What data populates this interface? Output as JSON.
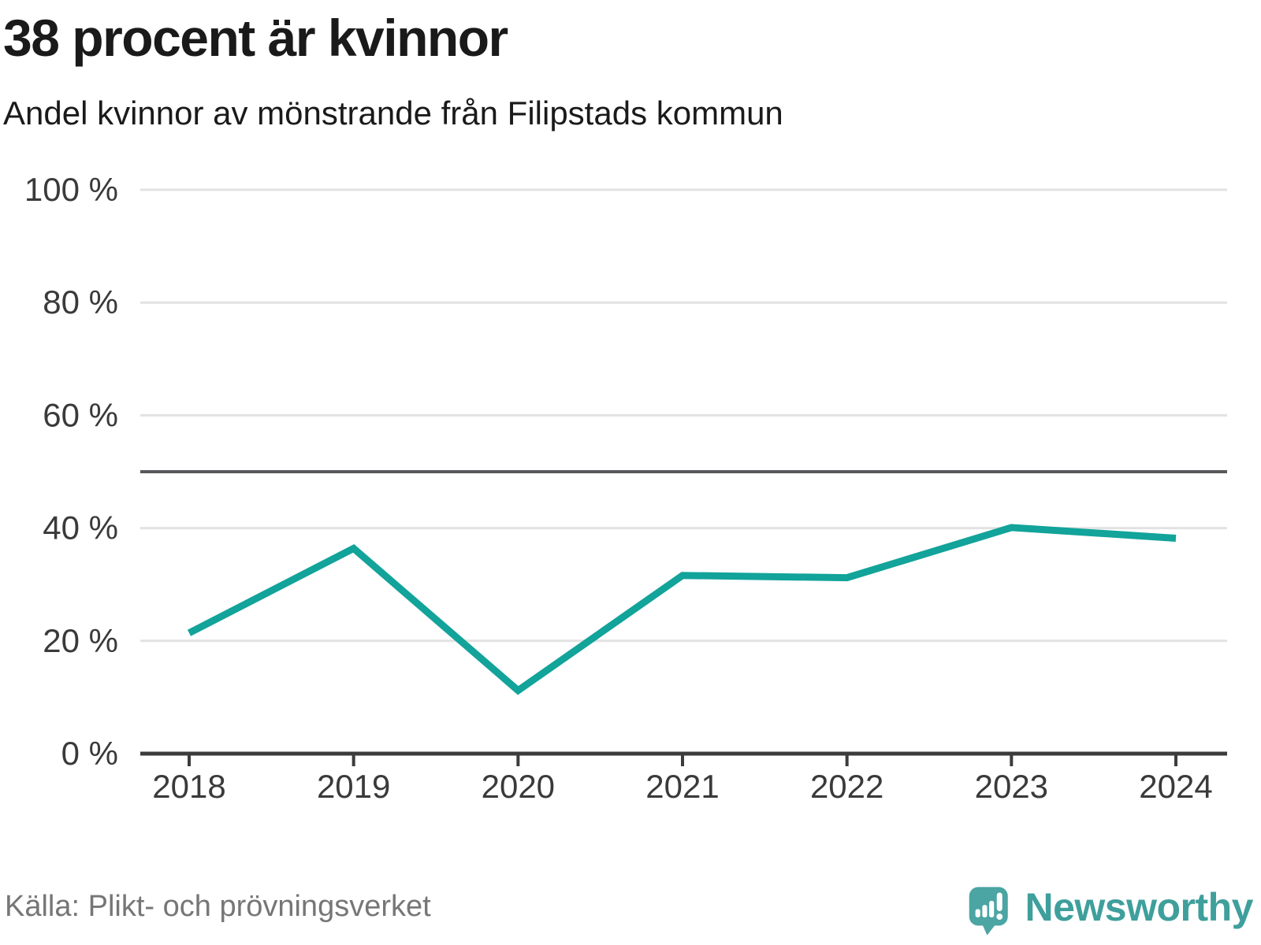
{
  "header": {
    "title": "38 procent är kvinnor",
    "subtitle": "Andel kvinnor av mönstrande från Filipstads kommun"
  },
  "footer": {
    "source": "Källa: Plikt- och prövningsverket",
    "brand": "Newsworthy"
  },
  "colors": {
    "line": "#12a39a",
    "grid": "#e2e2e2",
    "axis": "#3c3c3c",
    "reference_line": "#58585c",
    "tick_text": "#3a3a3a",
    "title_text": "#1a1a1a",
    "source_text": "#767676",
    "brand_text": "#3f9f9c",
    "logo_bubble": "#4ba5a2"
  },
  "chart_data": {
    "type": "line",
    "title": "38 procent är kvinnor",
    "subtitle": "Andel kvinnor av mönstrande från Filipstads kommun",
    "x": [
      2018,
      2019,
      2020,
      2021,
      2022,
      2023,
      2024
    ],
    "series": [
      {
        "name": "Andel kvinnor av mönstrande",
        "values": [
          21.4,
          36.4,
          11.2,
          31.6,
          31.2,
          40.1,
          38.2
        ]
      }
    ],
    "xlabel": "",
    "ylabel": "",
    "ylim": [
      0,
      100
    ],
    "y_ticks": [
      0,
      20,
      40,
      60,
      80,
      100
    ],
    "y_tick_suffix": " %",
    "reference_line": 50,
    "grid": "horizontal",
    "legend": "none"
  }
}
